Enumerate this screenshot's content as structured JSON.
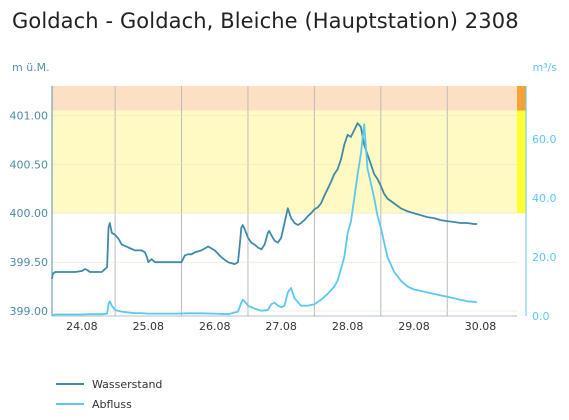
{
  "title": "Goldach - Goldach, Bleiche (Hauptstation) 2308",
  "colors": {
    "wasserstand": "#3f8aa8",
    "abfluss": "#5bc8f0",
    "band_yellow": "#fff9c4",
    "band_orange": "#fde0c4",
    "marker_yellow": "#ffff33",
    "marker_orange": "#f7a233",
    "axis_right": "#5bc8f0",
    "axis_left": "#5a8fa8"
  },
  "chart_data": {
    "type": "line",
    "title": "Goldach - Goldach, Bleiche (Hauptstation) 2308",
    "ylabel_left": "m ü.M.",
    "ylabel_right": "m³/s",
    "y_left_ticks": [
      "399.00",
      "399.50",
      "400.00",
      "400.50",
      "401.00"
    ],
    "y_left_tick_values": [
      399.0,
      399.5,
      400.0,
      400.5,
      401.0
    ],
    "y_left_range": [
      398.95,
      401.3
    ],
    "y_right_ticks": [
      "0.0",
      "20.0",
      "40.0",
      "60.0"
    ],
    "y_right_tick_values": [
      0,
      20,
      40,
      60
    ],
    "y_right_range": [
      0,
      78
    ],
    "x_ticks": [
      "24.08",
      "25.08",
      "26.08",
      "27.08",
      "28.08",
      "29.08",
      "30.08"
    ],
    "x_tick_values": [
      0,
      1,
      2,
      3,
      4,
      5,
      6
    ],
    "x_range": [
      -0.45,
      6.55
    ],
    "bands": [
      {
        "from": 400.0,
        "to": 401.05,
        "color": "#fff9c4"
      },
      {
        "from": 401.05,
        "to": 401.3,
        "color": "#fde0c4"
      }
    ],
    "grid": "vertical",
    "legend_position": "bottom-left",
    "series": [
      {
        "name": "Wasserstand",
        "axis": "left",
        "color": "#3f8aa8",
        "x": [
          -0.45,
          -0.44,
          -0.4,
          -0.3,
          -0.2,
          -0.1,
          0.0,
          0.05,
          0.08,
          0.1,
          0.12,
          0.2,
          0.3,
          0.38,
          0.4,
          0.42,
          0.45,
          0.5,
          0.55,
          0.6,
          0.7,
          0.8,
          0.9,
          0.95,
          0.98,
          1.0,
          1.05,
          1.1,
          1.15,
          1.2,
          1.3,
          1.4,
          1.5,
          1.55,
          1.6,
          1.65,
          1.7,
          1.8,
          1.9,
          2.0,
          2.1,
          2.2,
          2.3,
          2.35,
          2.38,
          2.4,
          2.42,
          2.45,
          2.5,
          2.55,
          2.6,
          2.65,
          2.7,
          2.75,
          2.8,
          2.82,
          2.85,
          2.9,
          2.95,
          3.0,
          3.05,
          3.1,
          3.15,
          3.2,
          3.25,
          3.3,
          3.35,
          3.4,
          3.45,
          3.5,
          3.55,
          3.6,
          3.65,
          3.7,
          3.75,
          3.8,
          3.85,
          3.9,
          3.95,
          4.0,
          4.05,
          4.1,
          4.15,
          4.2,
          4.25,
          4.3,
          4.35,
          4.4,
          4.45,
          4.5,
          4.55,
          4.6,
          4.7,
          4.8,
          4.9,
          5.0,
          5.1,
          5.2,
          5.3,
          5.4,
          5.5,
          5.6,
          5.7,
          5.8,
          5.9,
          5.95
        ],
        "y": [
          399.33,
          399.38,
          399.4,
          399.4,
          399.4,
          399.4,
          399.41,
          399.43,
          399.42,
          399.41,
          399.4,
          399.4,
          399.4,
          399.45,
          399.85,
          399.9,
          399.8,
          399.78,
          399.74,
          399.68,
          399.65,
          399.62,
          399.62,
          399.6,
          399.55,
          399.5,
          399.53,
          399.5,
          399.5,
          399.5,
          399.5,
          399.5,
          399.5,
          399.57,
          399.58,
          399.58,
          399.6,
          399.62,
          399.66,
          399.62,
          399.55,
          399.5,
          399.48,
          399.5,
          399.7,
          399.85,
          399.88,
          399.84,
          399.75,
          399.7,
          399.68,
          399.65,
          399.63,
          399.68,
          399.8,
          399.82,
          399.78,
          399.72,
          399.7,
          399.75,
          399.9,
          400.05,
          399.95,
          399.9,
          399.88,
          399.9,
          399.93,
          399.97,
          400.0,
          400.04,
          400.06,
          400.1,
          400.18,
          400.25,
          400.32,
          400.4,
          400.45,
          400.55,
          400.7,
          400.8,
          400.78,
          400.85,
          400.92,
          400.88,
          400.7,
          400.6,
          400.5,
          400.4,
          400.35,
          400.28,
          400.2,
          400.15,
          400.1,
          400.05,
          400.02,
          400.0,
          399.98,
          399.96,
          399.95,
          399.93,
          399.92,
          399.91,
          399.9,
          399.9,
          399.89,
          399.89
        ]
      },
      {
        "name": "Abfluss",
        "axis": "right",
        "color": "#5bc8f0",
        "x": [
          -0.45,
          -0.4,
          -0.2,
          0.0,
          0.1,
          0.2,
          0.3,
          0.38,
          0.4,
          0.42,
          0.45,
          0.5,
          0.6,
          0.7,
          0.8,
          0.9,
          1.0,
          1.2,
          1.4,
          1.6,
          1.8,
          2.0,
          2.2,
          2.35,
          2.4,
          2.42,
          2.45,
          2.5,
          2.6,
          2.7,
          2.8,
          2.85,
          2.9,
          2.95,
          3.0,
          3.05,
          3.1,
          3.15,
          3.2,
          3.3,
          3.4,
          3.5,
          3.6,
          3.7,
          3.8,
          3.85,
          3.9,
          3.95,
          4.0,
          4.05,
          4.1,
          4.15,
          4.2,
          4.25,
          4.3,
          4.35,
          4.4,
          4.45,
          4.5,
          4.55,
          4.6,
          4.7,
          4.8,
          4.9,
          5.0,
          5.1,
          5.2,
          5.3,
          5.4,
          5.5,
          5.6,
          5.7,
          5.8,
          5.9,
          5.95
        ],
        "y": [
          0.3,
          0.5,
          0.5,
          0.5,
          0.6,
          0.6,
          0.6,
          0.8,
          4.0,
          5.0,
          3.5,
          2.0,
          1.5,
          1.2,
          1.0,
          1.0,
          0.8,
          0.8,
          0.8,
          0.9,
          0.9,
          0.8,
          0.6,
          1.5,
          4.5,
          5.5,
          5.0,
          3.5,
          2.5,
          1.8,
          2.0,
          4.0,
          4.5,
          3.5,
          3.0,
          3.5,
          8.0,
          9.5,
          6.0,
          3.5,
          3.5,
          4.0,
          5.5,
          7.5,
          10.0,
          12.0,
          16.0,
          20.0,
          28.0,
          32.0,
          40.0,
          48.0,
          55.0,
          65.0,
          50.0,
          45.0,
          40.0,
          34.0,
          30.0,
          25.0,
          20.0,
          15.0,
          12.0,
          10.0,
          9.0,
          8.5,
          8.0,
          7.5,
          7.0,
          6.5,
          6.0,
          5.5,
          5.0,
          4.8,
          4.6
        ]
      }
    ]
  },
  "legend": [
    {
      "label": "Wasserstand",
      "color": "#3f8aa8"
    },
    {
      "label": "Abfluss",
      "color": "#5bc8f0"
    }
  ]
}
